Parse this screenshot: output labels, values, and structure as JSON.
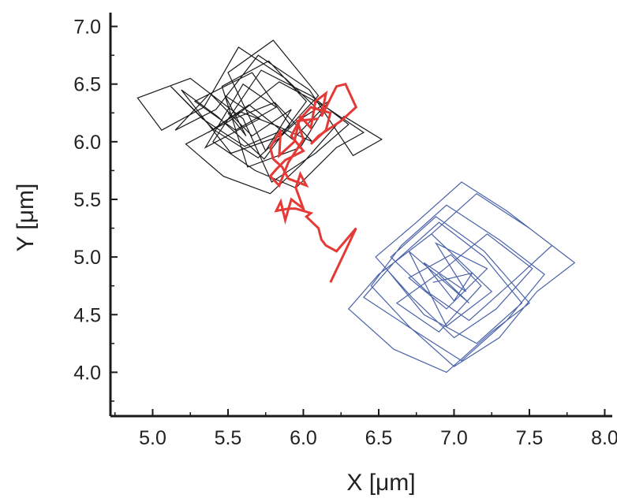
{
  "chart_data": {
    "type": "line",
    "title": "",
    "xlabel": "X [μm]",
    "ylabel": "Y [μm]",
    "xlim": [
      4.72,
      8.05
    ],
    "ylim": [
      3.62,
      7.12
    ],
    "x_ticks": [
      5.0,
      5.5,
      6.0,
      6.5,
      7.0,
      7.5,
      8.0
    ],
    "x_tick_labels": [
      "5.0",
      "5.5",
      "6.0",
      "6.5",
      "7.0",
      "7.5",
      "8.0"
    ],
    "y_ticks": [
      4.0,
      4.5,
      5.0,
      5.5,
      6.0,
      6.5,
      7.0
    ],
    "y_tick_labels": [
      "4.0",
      "4.5",
      "5.0",
      "5.5",
      "6.0",
      "6.5",
      "7.0"
    ],
    "grid": false,
    "legend": "none",
    "series": [
      {
        "color": "#1a1a1a",
        "style": "confined random walk",
        "x": [
          5.5,
          5.62,
          5.48,
          5.71,
          5.35,
          5.6,
          5.82,
          5.55,
          5.28,
          5.66,
          5.91,
          5.74,
          5.43,
          5.19,
          5.52,
          5.85,
          6.02,
          5.77,
          5.46,
          5.63,
          5.98,
          6.12,
          5.88,
          5.57,
          5.34,
          5.06,
          4.9,
          5.25,
          5.6,
          5.79,
          6.08,
          6.3,
          6.05,
          5.72,
          5.4,
          5.68,
          5.95,
          6.22,
          6.4,
          6.15,
          5.84,
          5.51,
          5.22,
          5.47,
          5.78,
          6.0,
          6.27,
          6.52,
          6.33,
          6.04,
          5.7,
          5.42,
          5.15,
          5.38,
          5.66,
          5.92,
          5.75,
          5.5,
          5.8,
          6.1,
          5.9,
          5.61,
          5.33,
          5.12,
          5.41,
          5.7,
          5.96,
          6.18,
          5.93,
          5.64,
          5.37,
          5.58,
          5.82,
          6.06,
          5.81,
          5.54
        ],
        "y": [
          6.25,
          6.05,
          6.4,
          6.2,
          5.95,
          6.5,
          6.3,
          6.1,
          6.35,
          6.6,
          6.15,
          5.85,
          6.22,
          6.45,
          5.9,
          6.05,
          6.35,
          6.7,
          6.48,
          5.78,
          5.95,
          6.25,
          6.55,
          6.82,
          6.3,
          6.1,
          6.38,
          6.55,
          6.2,
          5.65,
          5.9,
          6.15,
          6.4,
          6.62,
          6.0,
          5.75,
          5.6,
          5.95,
          6.08,
          6.3,
          6.52,
          6.18,
          5.98,
          5.7,
          5.55,
          5.82,
          6.22,
          6.02,
          5.88,
          6.45,
          6.75,
          6.28,
          6.1,
          6.42,
          6.05,
          6.28,
          5.92,
          6.6,
          6.88,
          6.4,
          6.12,
          5.96,
          6.2,
          6.48,
          6.1,
          5.86,
          6.18,
          6.36,
          6.02,
          6.32,
          6.08,
          6.26,
          6.14,
          6.0,
          6.34,
          6.2
        ]
      },
      {
        "color": "#4a62a8",
        "style": "confined random walk",
        "x": [
          6.9,
          7.1,
          6.7,
          6.95,
          7.25,
          6.85,
          6.55,
          6.8,
          7.15,
          7.45,
          7.2,
          6.9,
          6.6,
          6.4,
          6.75,
          7.05,
          7.35,
          7.6,
          7.3,
          6.95,
          6.65,
          6.45,
          6.7,
          7.0,
          7.3,
          7.55,
          7.8,
          7.5,
          7.15,
          6.85,
          6.5,
          6.3,
          6.6,
          6.95,
          7.25,
          7.5,
          7.2,
          6.88,
          6.58,
          6.82,
          7.1,
          7.4,
          7.65,
          7.35,
          7.05,
          6.75,
          6.48,
          6.72,
          7.0,
          7.28,
          7.52,
          7.22,
          6.92,
          6.62,
          6.9,
          7.18,
          6.98,
          6.7,
          6.95,
          7.22,
          6.88,
          7.08,
          6.8,
          7.0,
          7.12,
          6.86
        ],
        "y": [
          4.85,
          4.6,
          5.05,
          4.4,
          4.7,
          5.2,
          4.9,
          4.5,
          4.25,
          4.6,
          5.0,
          5.3,
          4.95,
          4.65,
          4.35,
          4.1,
          4.45,
          4.85,
          5.15,
          5.45,
          5.1,
          4.75,
          4.4,
          4.05,
          4.3,
          4.7,
          4.95,
          5.25,
          5.55,
          5.2,
          4.85,
          4.55,
          4.2,
          4.0,
          4.35,
          4.6,
          5.05,
          5.35,
          5.0,
          4.7,
          4.45,
          4.8,
          5.1,
          5.4,
          5.65,
          5.3,
          5.0,
          4.65,
          4.3,
          4.55,
          4.9,
          5.2,
          4.88,
          4.6,
          4.35,
          4.75,
          5.02,
          4.82,
          4.55,
          4.9,
          5.12,
          4.7,
          4.95,
          4.62,
          4.86,
          4.78
        ]
      },
      {
        "color": "#e53935",
        "style": "transition path",
        "x": [
          6.18,
          6.26,
          6.35,
          6.22,
          6.15,
          6.12,
          6.1,
          6.02,
          6.05,
          5.95,
          5.9,
          5.82,
          5.85,
          5.88,
          5.92,
          6.0,
          5.95,
          5.98,
          6.02,
          5.9,
          5.86,
          5.8,
          5.78,
          5.85,
          5.84,
          5.94,
          5.98,
          6.05,
          6.08,
          6.15,
          6.12,
          6.22,
          6.28,
          6.35,
          6.25,
          6.1,
          6.05,
          6.15,
          6.18,
          6.05,
          5.98,
          5.92,
          6.0,
          5.88,
          5.82,
          5.78,
          5.84,
          5.9,
          6.0,
          5.96,
          6.1
        ],
        "y": [
          4.78,
          5.0,
          5.25,
          5.05,
          5.1,
          5.15,
          5.25,
          5.35,
          5.38,
          5.42,
          5.42,
          5.4,
          5.48,
          5.32,
          5.5,
          5.42,
          5.6,
          5.72,
          5.62,
          5.68,
          5.78,
          5.85,
          5.95,
          6.1,
          5.88,
          6.0,
          6.22,
          6.12,
          6.35,
          6.42,
          6.22,
          6.48,
          6.5,
          6.3,
          6.18,
          6.05,
          5.98,
          6.1,
          6.25,
          6.3,
          6.2,
          6.05,
          5.92,
          5.84,
          5.76,
          5.7,
          5.62,
          5.82,
          6.02,
          6.18,
          6.2
        ]
      }
    ]
  }
}
